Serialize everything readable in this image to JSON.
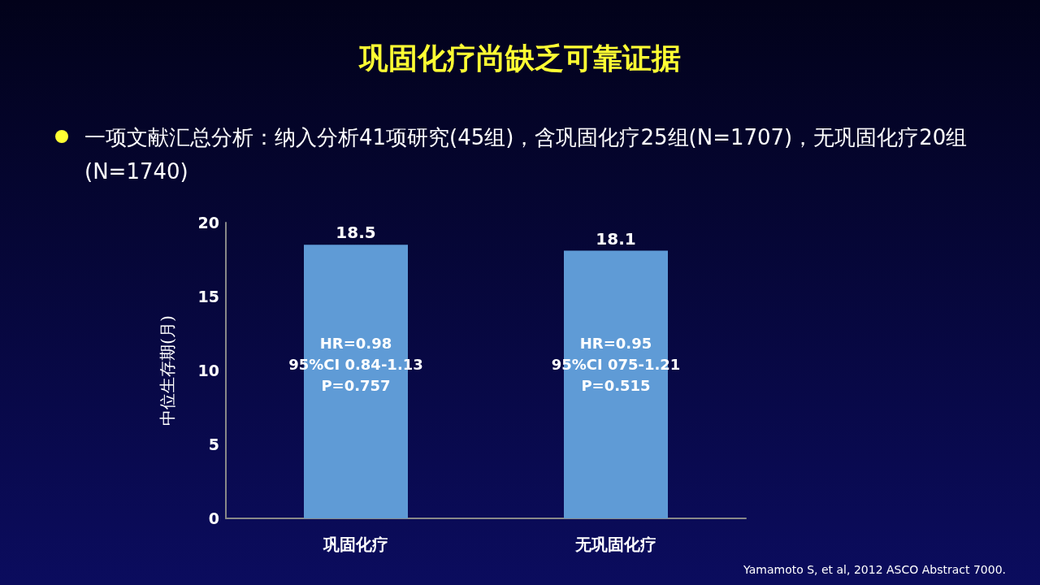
{
  "chart_data": {
    "type": "bar",
    "title": "巩固化疗尚缺乏可靠证据",
    "subtitle": "一项文献汇总分析：纳入分析41项研究(45组)，含巩固化疗25组(N=1707)，无巩固化疗20组(N=1740)",
    "categories": [
      "巩固化疗",
      "无巩固化疗"
    ],
    "values": [
      18.5,
      18.1
    ],
    "color": "#5f9bd6",
    "ylabel": "中位生存期(月)",
    "ylim": [
      0,
      20
    ],
    "yticks": [
      0,
      5,
      10,
      15,
      20
    ],
    "grid": false,
    "data_labels": true,
    "annotations": [
      "HR=0.98\n95%CI 0.84-1.13\nP=0.757",
      "HR=0.95\n95%CI 075-1.21\nP=0.515",
      "Yamamoto S, et al, 2012 ASCO Abstract 7000."
    ]
  }
}
